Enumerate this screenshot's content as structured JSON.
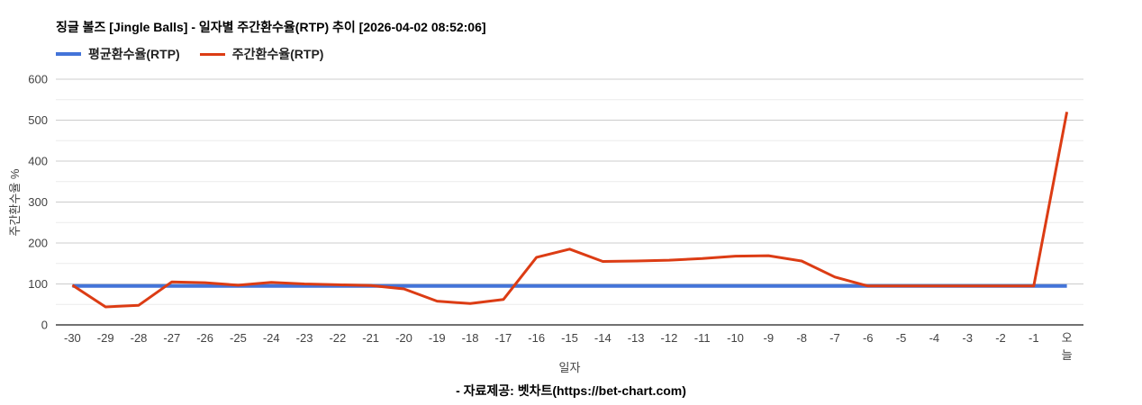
{
  "header": {
    "title": "징글 볼즈 [Jingle Balls] - 일자별 주간환수율(RTP) 추이 [2026-04-02 08:52:06]"
  },
  "footer": {
    "credit": "- 자료제공: 벳차트(https://bet-chart.com)"
  },
  "chart_data": {
    "type": "line",
    "title": "징글 볼즈 [Jingle Balls] - 일자별 주간환수율(RTP) 추이 [2026-04-02 08:52:06]",
    "xlabel": "일자",
    "ylabel": "주간환수율 %",
    "ylim": [
      0,
      600
    ],
    "y_major_ticks": [
      0,
      100,
      200,
      300,
      400,
      500,
      600
    ],
    "y_minor_ticks": [
      50,
      150,
      250,
      350,
      450,
      550
    ],
    "grid": true,
    "legend_position": "top",
    "categories": [
      "-30",
      "-29",
      "-28",
      "-27",
      "-26",
      "-25",
      "-24",
      "-23",
      "-22",
      "-21",
      "-20",
      "-19",
      "-18",
      "-17",
      "-16",
      "-15",
      "-14",
      "-13",
      "-12",
      "-11",
      "-10",
      "-9",
      "-8",
      "-7",
      "-6",
      "-5",
      "-4",
      "-3",
      "-2",
      "-1",
      "오늘"
    ],
    "series": [
      {
        "name": "평균환수율(RTP)",
        "color": "#4374d9",
        "stroke_width": 4,
        "values": [
          95,
          95,
          95,
          95,
          95,
          95,
          95,
          95,
          95,
          95,
          95,
          95,
          95,
          95,
          95,
          95,
          95,
          95,
          95,
          95,
          95,
          95,
          95,
          95,
          95,
          95,
          95,
          95,
          95,
          95,
          95
        ]
      },
      {
        "name": "주간환수율(RTP)",
        "color": "#dc3c14",
        "stroke_width": 3,
        "values": [
          97,
          44,
          48,
          105,
          103,
          97,
          104,
          100,
          98,
          96,
          88,
          58,
          52,
          62,
          165,
          185,
          155,
          156,
          158,
          162,
          168,
          169,
          156,
          117,
          95,
          95,
          95,
          95,
          95,
          95,
          520
        ]
      }
    ],
    "colors": {
      "major_grid": "#cccccc",
      "minor_grid": "#ebebeb",
      "baseline": "#424242",
      "tick_label": "#424242"
    }
  }
}
